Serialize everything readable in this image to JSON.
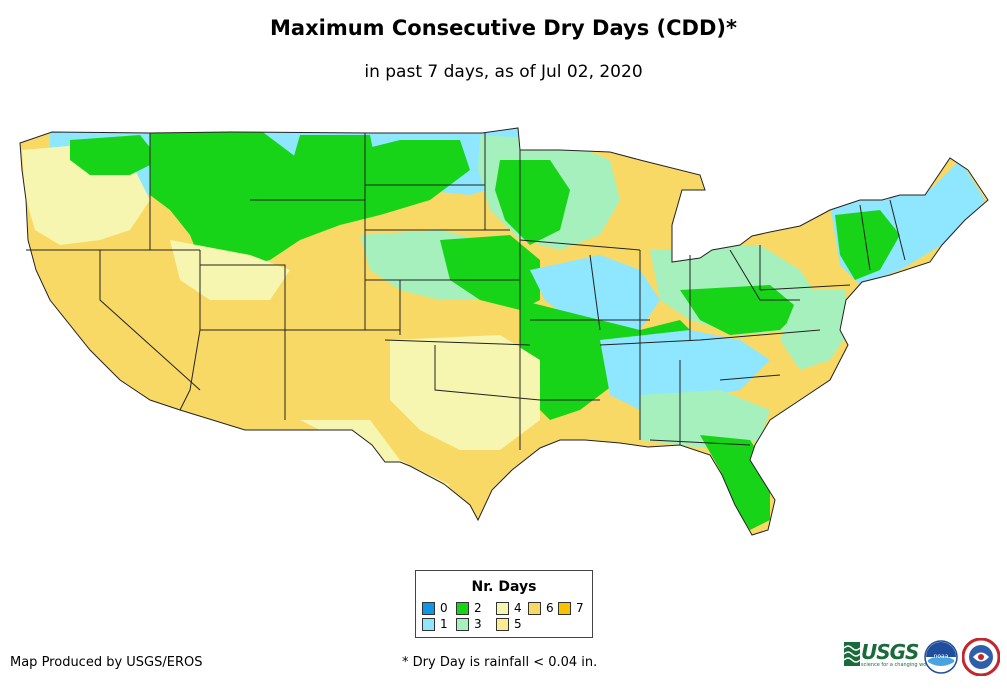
{
  "title": "Maximum Consecutive Dry Days (CDD)*",
  "subtitle": "in past 7 days, as of Jul 02, 2020",
  "legend": {
    "title": "Nr. Days",
    "items": [
      {
        "label": "0",
        "color": "#0f97e6"
      },
      {
        "label": "1",
        "color": "#8fe6ff"
      },
      {
        "label": "2",
        "color": "#18d418"
      },
      {
        "label": "3",
        "color": "#a6f0bd"
      },
      {
        "label": "4",
        "color": "#f6f6b0"
      },
      {
        "label": "5",
        "color": "#fbec94"
      },
      {
        "label": "6",
        "color": "#f9d966"
      },
      {
        "label": "7",
        "color": "#f7c300"
      }
    ]
  },
  "credit": "Map Produced by USGS/EROS",
  "footnote": "* Dry Day is rainfall < 0.04 in.",
  "logos": {
    "usgs_text": "USGS",
    "usgs_tagline": "science for a changing world",
    "noaa_text": "noaa"
  },
  "colors": {
    "state_border": "#222222",
    "map_base": "#f9d966"
  }
}
